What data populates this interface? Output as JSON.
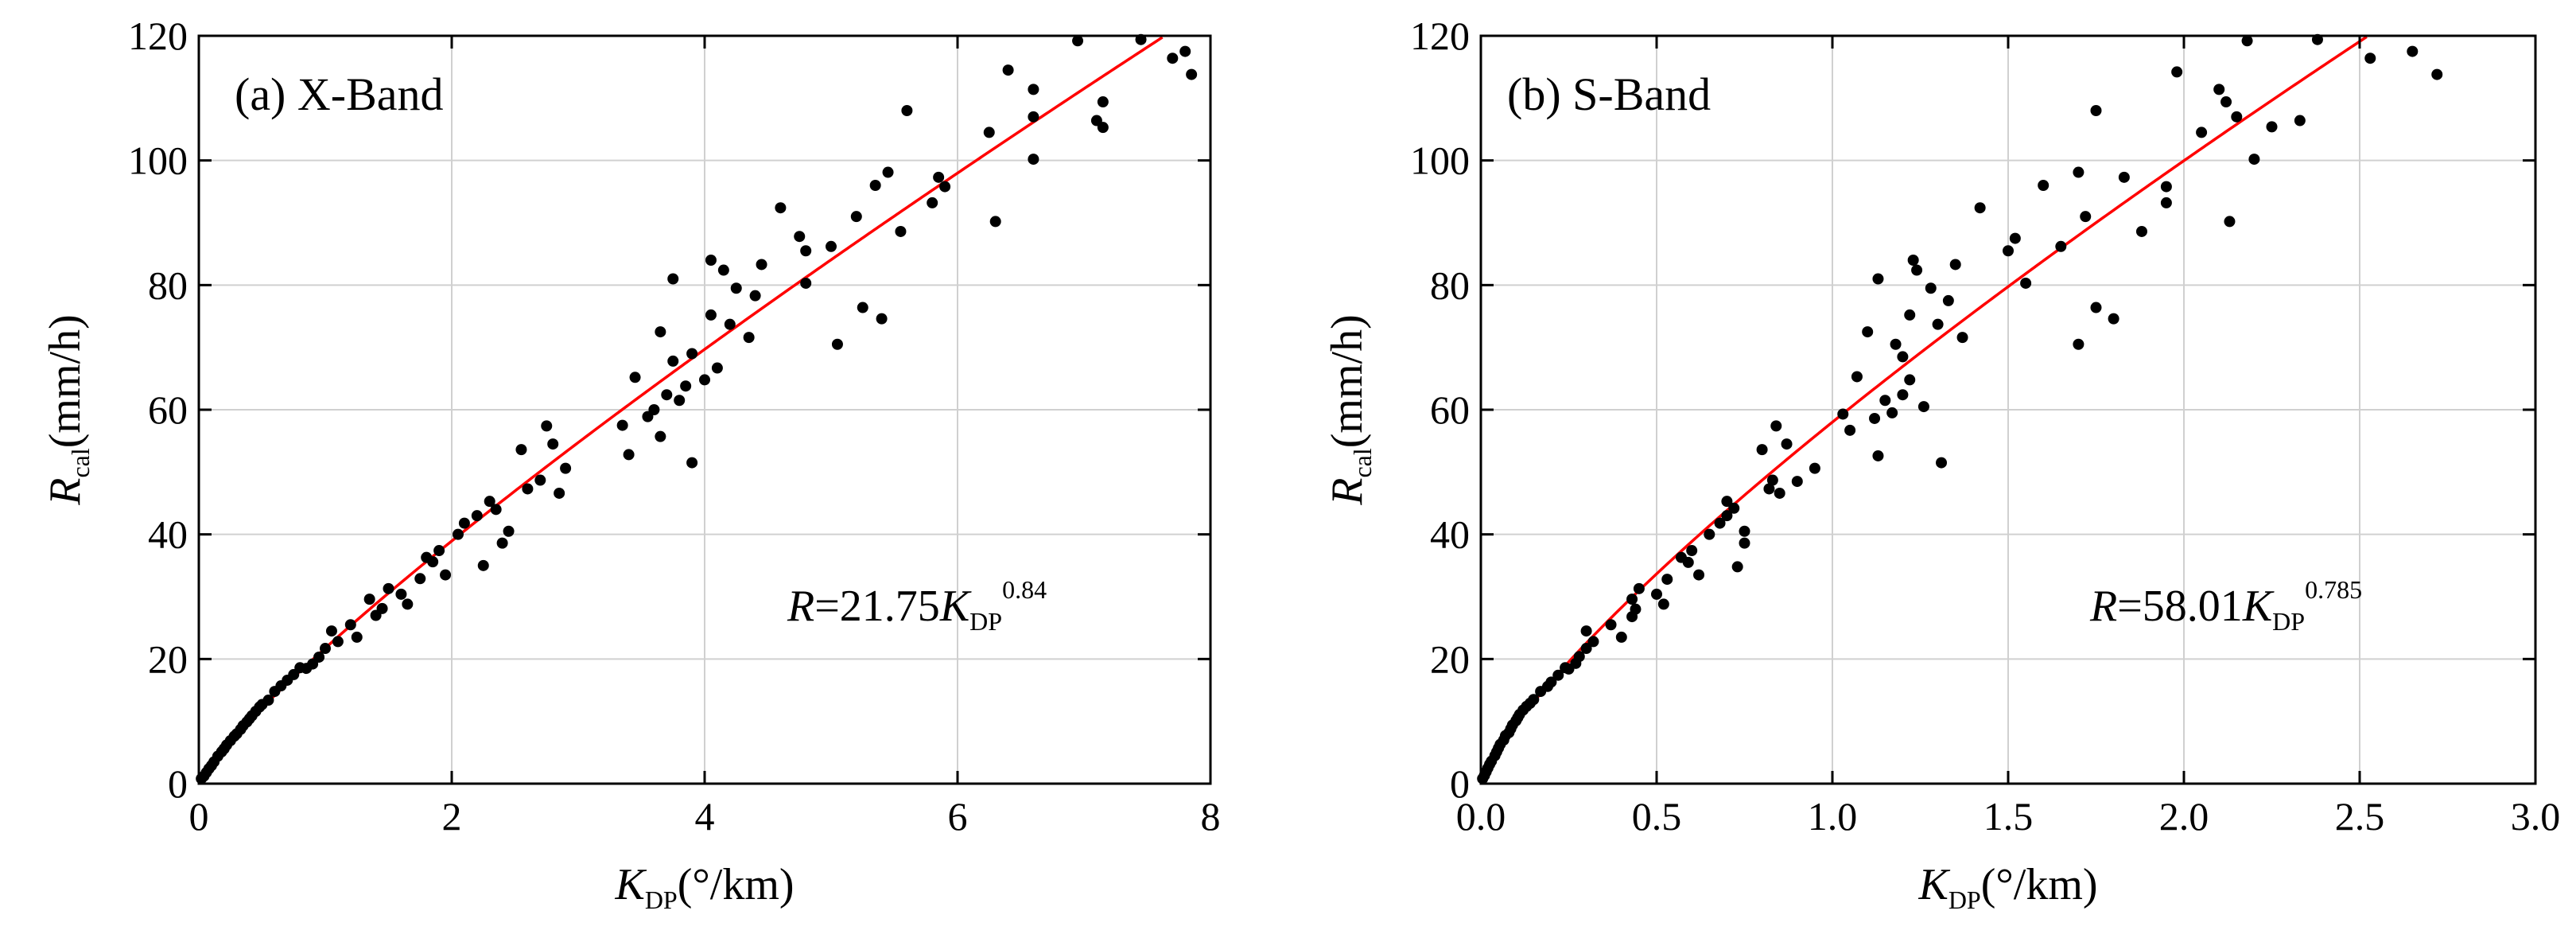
{
  "chart_data": [
    {
      "type": "scatter",
      "panel_label": "(a) X-Band",
      "xlabel": {
        "symbol": "K",
        "sub": "DP",
        "unit": "(°/km)"
      },
      "ylabel": {
        "symbol": "R",
        "sub": "cal",
        "unit": "(mm/h)"
      },
      "xlim": [
        0,
        8
      ],
      "ylim": [
        0,
        120
      ],
      "xticks": [
        0,
        2,
        4,
        6,
        8
      ],
      "xtick_labels": [
        "0",
        "2",
        "4",
        "6",
        "8"
      ],
      "yticks": [
        0,
        20,
        40,
        60,
        80,
        100,
        120
      ],
      "ytick_labels": [
        "0",
        "20",
        "40",
        "60",
        "80",
        "100",
        "120"
      ],
      "grid": true,
      "point_color": "#000000",
      "fit_color": "#ff0000",
      "fit": {
        "coefficient": 21.75,
        "exponent": 0.84
      },
      "equation": {
        "lhs": "R",
        "eq": "=21.75",
        "symbol": "K",
        "sub": "DP",
        "exp": "0.84"
      },
      "points": [
        [
          0.02,
          0.8
        ],
        [
          0.04,
          1.2
        ],
        [
          0.06,
          1.8
        ],
        [
          0.08,
          2.4
        ],
        [
          0.1,
          2.9
        ],
        [
          0.12,
          3.5
        ],
        [
          0.15,
          4.4
        ],
        [
          0.18,
          5.1
        ],
        [
          0.2,
          5.6
        ],
        [
          0.22,
          6.2
        ],
        [
          0.25,
          6.9
        ],
        [
          0.28,
          7.6
        ],
        [
          0.3,
          8.0
        ],
        [
          0.33,
          8.7
        ],
        [
          0.35,
          9.3
        ],
        [
          0.38,
          9.9
        ],
        [
          0.4,
          10.4
        ],
        [
          0.42,
          10.9
        ],
        [
          0.45,
          11.6
        ],
        [
          0.48,
          12.3
        ],
        [
          0.5,
          12.7
        ],
        [
          0.55,
          13.4
        ],
        [
          0.6,
          14.8
        ],
        [
          0.65,
          15.7
        ],
        [
          0.7,
          16.6
        ],
        [
          0.75,
          17.5
        ],
        [
          0.8,
          18.6
        ],
        [
          0.85,
          18.5
        ],
        [
          0.9,
          19.2
        ],
        [
          0.95,
          20.3
        ],
        [
          1.0,
          21.7
        ],
        [
          1.05,
          24.5
        ],
        [
          1.1,
          22.8
        ],
        [
          1.2,
          25.5
        ],
        [
          1.25,
          23.5
        ],
        [
          1.35,
          29.6
        ],
        [
          1.4,
          27.0
        ],
        [
          1.45,
          28.1
        ],
        [
          1.5,
          31.3
        ],
        [
          1.6,
          30.4
        ],
        [
          1.65,
          28.8
        ],
        [
          1.75,
          32.9
        ],
        [
          1.8,
          36.3
        ],
        [
          1.85,
          35.6
        ],
        [
          1.9,
          37.4
        ],
        [
          1.95,
          33.5
        ],
        [
          2.05,
          40.0
        ],
        [
          2.1,
          41.8
        ],
        [
          2.2,
          43.0
        ],
        [
          2.25,
          35.0
        ],
        [
          2.3,
          45.3
        ],
        [
          2.35,
          44.0
        ],
        [
          2.4,
          38.6
        ],
        [
          2.45,
          40.5
        ],
        [
          2.55,
          53.6
        ],
        [
          2.6,
          47.3
        ],
        [
          2.7,
          48.7
        ],
        [
          2.75,
          57.4
        ],
        [
          2.8,
          54.5
        ],
        [
          2.85,
          46.6
        ],
        [
          2.9,
          50.6
        ],
        [
          3.35,
          57.5
        ],
        [
          3.4,
          52.8
        ],
        [
          3.45,
          65.2
        ],
        [
          3.55,
          58.9
        ],
        [
          3.6,
          60.0
        ],
        [
          3.65,
          55.7
        ],
        [
          3.65,
          72.5
        ],
        [
          3.7,
          62.4
        ],
        [
          3.75,
          67.8
        ],
        [
          3.75,
          81.0
        ],
        [
          3.8,
          61.5
        ],
        [
          3.85,
          63.8
        ],
        [
          3.9,
          69.0
        ],
        [
          3.9,
          51.5
        ],
        [
          4.0,
          64.8
        ],
        [
          4.05,
          84.0
        ],
        [
          4.05,
          75.2
        ],
        [
          4.1,
          66.7
        ],
        [
          4.15,
          82.4
        ],
        [
          4.2,
          73.7
        ],
        [
          4.25,
          79.5
        ],
        [
          4.35,
          71.6
        ],
        [
          4.4,
          78.3
        ],
        [
          4.45,
          83.3
        ],
        [
          4.6,
          92.4
        ],
        [
          4.75,
          87.8
        ],
        [
          4.8,
          80.3
        ],
        [
          4.8,
          85.5
        ],
        [
          5.0,
          86.2
        ],
        [
          5.05,
          70.5
        ],
        [
          5.2,
          91.0
        ],
        [
          5.25,
          76.4
        ],
        [
          5.35,
          96.0
        ],
        [
          5.4,
          74.6
        ],
        [
          5.45,
          98.1
        ],
        [
          5.55,
          88.6
        ],
        [
          5.6,
          108.0
        ],
        [
          5.8,
          93.2
        ],
        [
          5.85,
          97.3
        ],
        [
          5.9,
          95.8
        ],
        [
          6.25,
          104.5
        ],
        [
          6.3,
          90.2
        ],
        [
          6.4,
          114.5
        ],
        [
          6.6,
          100.2
        ],
        [
          6.6,
          107.0
        ],
        [
          6.6,
          111.4
        ],
        [
          6.95,
          119.2
        ],
        [
          7.1,
          106.4
        ],
        [
          7.15,
          105.3
        ],
        [
          7.15,
          109.4
        ],
        [
          7.45,
          119.4
        ],
        [
          7.7,
          116.4
        ],
        [
          7.8,
          117.5
        ],
        [
          7.85,
          113.8
        ]
      ]
    },
    {
      "type": "scatter",
      "panel_label": "(b) S-Band",
      "xlabel": {
        "symbol": "K",
        "sub": "DP",
        "unit": "(°/km)"
      },
      "ylabel": {
        "symbol": "R",
        "sub": "cal",
        "unit": "(mm/h)"
      },
      "xlim": [
        0,
        3
      ],
      "ylim": [
        0,
        120
      ],
      "xticks": [
        0,
        0.5,
        1,
        1.5,
        2,
        2.5,
        3
      ],
      "xtick_labels": [
        "0.0",
        "0.5",
        "1.0",
        "1.5",
        "2.0",
        "2.5",
        "3.0"
      ],
      "yticks": [
        0,
        20,
        40,
        60,
        80,
        100,
        120
      ],
      "ytick_labels": [
        "0",
        "20",
        "40",
        "60",
        "80",
        "100",
        "120"
      ],
      "grid": true,
      "point_color": "#000000",
      "fit_color": "#ff0000",
      "fit": {
        "coefficient": 58.01,
        "exponent": 0.785
      },
      "equation": {
        "lhs": "R",
        "eq": "=58.01",
        "symbol": "K",
        "sub": "DP",
        "exp": "0.785"
      },
      "points": [
        [
          0.005,
          0.8
        ],
        [
          0.01,
          1.3
        ],
        [
          0.015,
          1.9
        ],
        [
          0.02,
          2.5
        ],
        [
          0.025,
          3.1
        ],
        [
          0.03,
          3.6
        ],
        [
          0.04,
          4.5
        ],
        [
          0.045,
          5.1
        ],
        [
          0.05,
          5.7
        ],
        [
          0.055,
          6.3
        ],
        [
          0.065,
          7.0
        ],
        [
          0.07,
          7.7
        ],
        [
          0.08,
          8.2
        ],
        [
          0.085,
          8.8
        ],
        [
          0.09,
          9.4
        ],
        [
          0.1,
          10.1
        ],
        [
          0.105,
          10.6
        ],
        [
          0.11,
          11.1
        ],
        [
          0.12,
          11.8
        ],
        [
          0.13,
          12.4
        ],
        [
          0.14,
          12.9
        ],
        [
          0.15,
          13.5
        ],
        [
          0.17,
          14.8
        ],
        [
          0.19,
          15.6
        ],
        [
          0.2,
          16.3
        ],
        [
          0.22,
          17.4
        ],
        [
          0.24,
          18.6
        ],
        [
          0.25,
          18.4
        ],
        [
          0.27,
          19.3
        ],
        [
          0.28,
          20.4
        ],
        [
          0.3,
          21.7
        ],
        [
          0.3,
          24.5
        ],
        [
          0.32,
          22.8
        ],
        [
          0.37,
          25.5
        ],
        [
          0.4,
          23.5
        ],
        [
          0.43,
          26.8
        ],
        [
          0.43,
          29.6
        ],
        [
          0.44,
          28.0
        ],
        [
          0.45,
          31.3
        ],
        [
          0.5,
          30.4
        ],
        [
          0.52,
          28.8
        ],
        [
          0.53,
          32.8
        ],
        [
          0.57,
          36.3
        ],
        [
          0.59,
          35.5
        ],
        [
          0.6,
          37.4
        ],
        [
          0.62,
          33.5
        ],
        [
          0.65,
          40.0
        ],
        [
          0.68,
          41.8
        ],
        [
          0.7,
          43.0
        ],
        [
          0.7,
          45.3
        ],
        [
          0.72,
          44.2
        ],
        [
          0.73,
          34.8
        ],
        [
          0.75,
          40.5
        ],
        [
          0.75,
          38.6
        ],
        [
          0.8,
          53.6
        ],
        [
          0.82,
          47.3
        ],
        [
          0.83,
          48.7
        ],
        [
          0.84,
          57.4
        ],
        [
          0.85,
          46.6
        ],
        [
          0.87,
          54.5
        ],
        [
          0.9,
          48.5
        ],
        [
          0.95,
          50.6
        ],
        [
          1.03,
          59.3
        ],
        [
          1.05,
          56.7
        ],
        [
          1.07,
          65.3
        ],
        [
          1.1,
          72.5
        ],
        [
          1.12,
          58.6
        ],
        [
          1.13,
          81.0
        ],
        [
          1.13,
          52.6
        ],
        [
          1.15,
          61.5
        ],
        [
          1.17,
          59.5
        ],
        [
          1.18,
          70.5
        ],
        [
          1.2,
          68.5
        ],
        [
          1.2,
          62.4
        ],
        [
          1.22,
          64.8
        ],
        [
          1.22,
          75.2
        ],
        [
          1.23,
          84.0
        ],
        [
          1.24,
          82.4
        ],
        [
          1.26,
          60.5
        ],
        [
          1.28,
          79.5
        ],
        [
          1.3,
          73.7
        ],
        [
          1.31,
          51.5
        ],
        [
          1.33,
          77.5
        ],
        [
          1.35,
          83.3
        ],
        [
          1.37,
          71.6
        ],
        [
          1.42,
          92.4
        ],
        [
          1.5,
          85.5
        ],
        [
          1.52,
          87.5
        ],
        [
          1.55,
          80.3
        ],
        [
          1.6,
          96.0
        ],
        [
          1.65,
          86.2
        ],
        [
          1.7,
          98.1
        ],
        [
          1.7,
          70.5
        ],
        [
          1.72,
          91.0
        ],
        [
          1.75,
          76.4
        ],
        [
          1.75,
          108.0
        ],
        [
          1.8,
          74.6
        ],
        [
          1.83,
          97.3
        ],
        [
          1.88,
          88.6
        ],
        [
          1.95,
          95.8
        ],
        [
          1.95,
          93.2
        ],
        [
          1.98,
          114.2
        ],
        [
          2.05,
          104.5
        ],
        [
          2.1,
          111.4
        ],
        [
          2.12,
          109.4
        ],
        [
          2.13,
          90.2
        ],
        [
          2.15,
          107.0
        ],
        [
          2.18,
          119.2
        ],
        [
          2.2,
          100.2
        ],
        [
          2.25,
          105.4
        ],
        [
          2.33,
          106.4
        ],
        [
          2.38,
          119.4
        ],
        [
          2.53,
          116.4
        ],
        [
          2.65,
          117.5
        ],
        [
          2.72,
          113.8
        ]
      ]
    }
  ]
}
